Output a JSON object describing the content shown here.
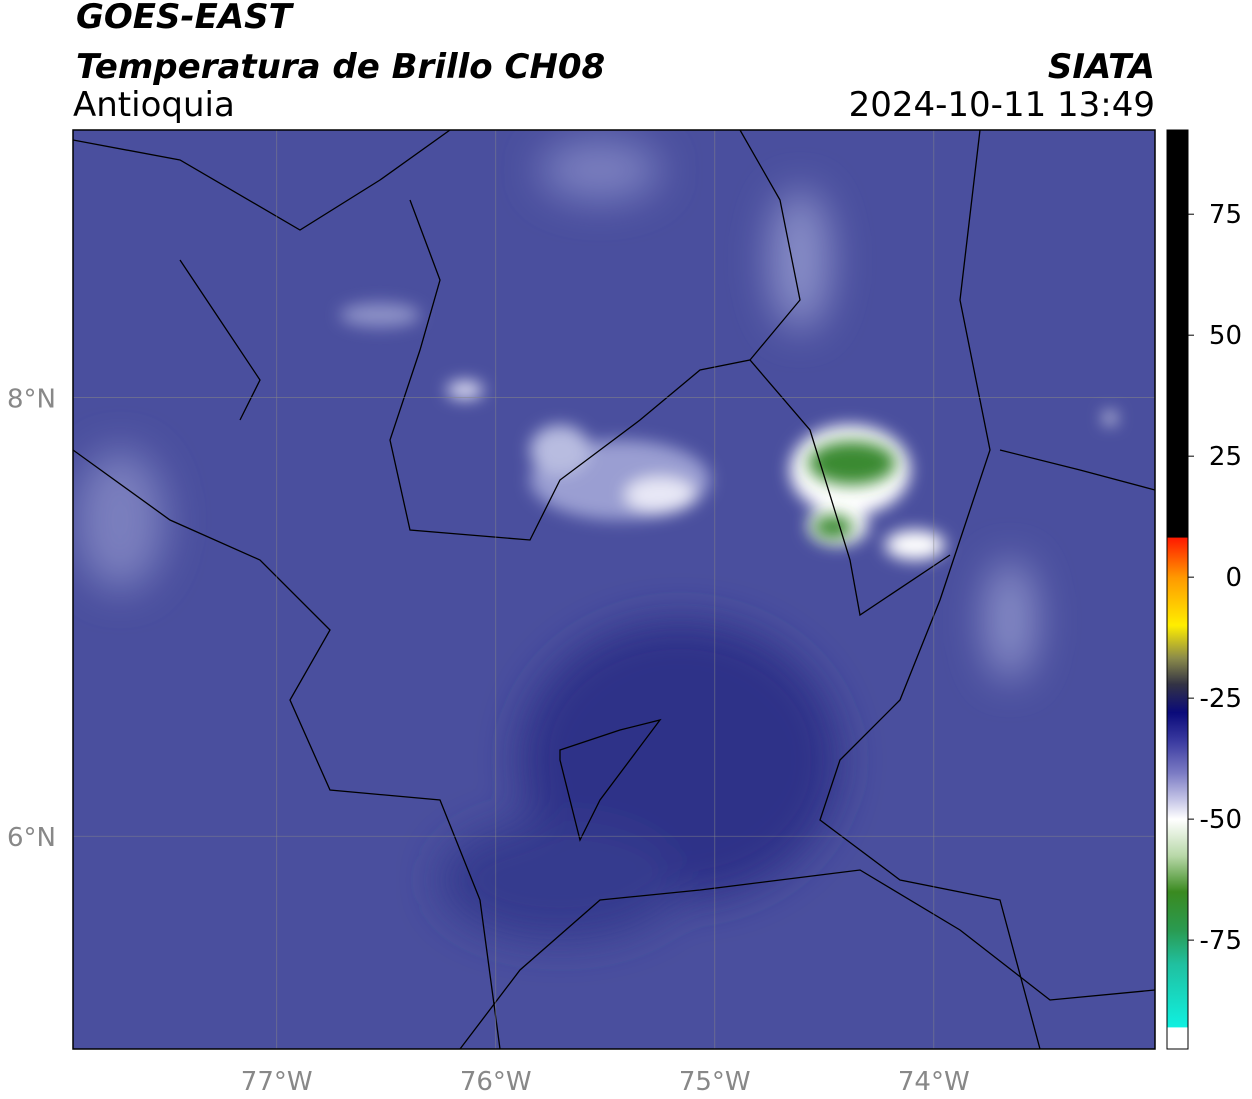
{
  "header": {
    "title": "GOES-EAST",
    "subtitle": "Temperatura de Brillo CH08",
    "region": "Antioquia",
    "source": "SIATA",
    "timestamp": "2024-10-11 13:49"
  },
  "map": {
    "xlim": [
      -77.93,
      -72.99
    ],
    "ylim": [
      5.03,
      9.22
    ],
    "xticks": [
      {
        "value": -77,
        "label": "77°W"
      },
      {
        "value": -76,
        "label": "76°W"
      },
      {
        "value": -75,
        "label": "75°W"
      },
      {
        "value": -74,
        "label": "74°W"
      }
    ],
    "yticks": [
      {
        "value": 8,
        "label": "8°N"
      },
      {
        "value": 6,
        "label": "6°N"
      }
    ]
  },
  "colorbar": {
    "lim": [
      -97.5,
      92.4
    ],
    "ticks": [
      75,
      50,
      25,
      0,
      -25,
      -50,
      -75
    ]
  }
}
